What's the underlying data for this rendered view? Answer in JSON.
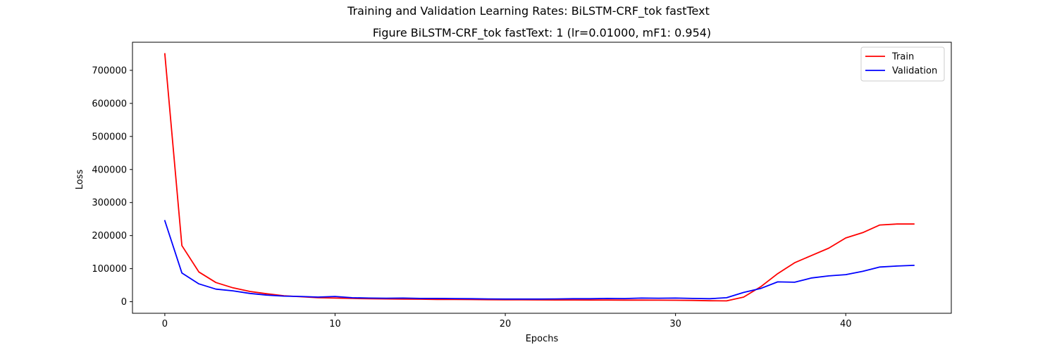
{
  "suptitle": "Training and Validation Learning Rates: BiLSTM-CRF_tok fastText",
  "chart_data": {
    "type": "line",
    "title": "Figure BiLSTM-CRF_tok fastText: 1 (lr=0.01000, mF1: 0.954)",
    "xlabel": "Epochs",
    "ylabel": "Loss",
    "xlim": [
      -1.9,
      46.2
    ],
    "ylim": [
      -35000,
      785000
    ],
    "xticks": [
      0,
      10,
      20,
      30,
      40
    ],
    "yticks": [
      0,
      100000,
      200000,
      300000,
      400000,
      500000,
      600000,
      700000
    ],
    "grid": false,
    "legend_position": "upper right",
    "x": [
      0,
      1,
      2,
      3,
      4,
      5,
      6,
      7,
      8,
      9,
      10,
      11,
      12,
      13,
      14,
      15,
      16,
      17,
      18,
      19,
      20,
      21,
      22,
      23,
      24,
      25,
      26,
      27,
      28,
      29,
      30,
      31,
      32,
      33,
      34,
      35,
      36,
      37,
      38,
      39,
      40,
      41,
      42,
      43,
      44
    ],
    "series": [
      {
        "name": "Train",
        "color": "#ff0000",
        "values": [
          750000,
          170000,
          90000,
          58000,
          42000,
          31000,
          24000,
          18000,
          15000,
          12000,
          11000,
          10000,
          9000,
          8500,
          8000,
          7500,
          7000,
          6800,
          6500,
          6200,
          6000,
          5800,
          5500,
          5300,
          5200,
          5100,
          5000,
          4900,
          4800,
          4600,
          4500,
          4000,
          3000,
          2500,
          14000,
          45000,
          85000,
          118000,
          140000,
          162000,
          193000,
          209000,
          232000,
          235000,
          235000
        ]
      },
      {
        "name": "Validation",
        "color": "#0000ff",
        "values": [
          245000,
          87000,
          54000,
          38000,
          33000,
          25000,
          20000,
          17000,
          16000,
          14000,
          16000,
          12000,
          11000,
          10500,
          11000,
          10000,
          10000,
          9500,
          9000,
          8500,
          8000,
          8000,
          8000,
          8500,
          9000,
          9000,
          10000,
          9500,
          11000,
          10500,
          11000,
          10000,
          9000,
          12000,
          28000,
          40000,
          60000,
          59000,
          72000,
          78000,
          82000,
          92000,
          105000,
          108000,
          110000
        ]
      }
    ]
  }
}
